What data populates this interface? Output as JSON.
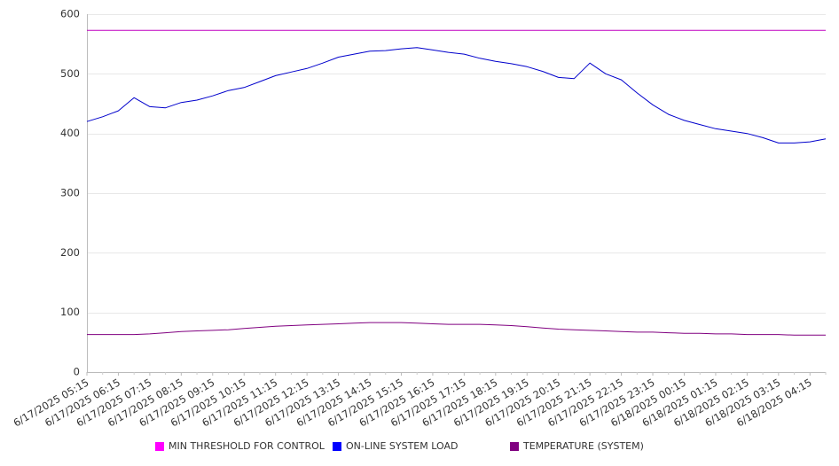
{
  "chart_data": {
    "type": "line",
    "title": "",
    "xlabel": "",
    "ylabel": "",
    "ylim": [
      0,
      600
    ],
    "yticks": [
      0,
      100,
      200,
      300,
      400,
      500,
      600
    ],
    "grid": true,
    "legend_position": "bottom",
    "x_tick_labels": [
      "6/17/2025 05:15",
      "6/17/2025 06:15",
      "6/17/2025 07:15",
      "6/17/2025 08:15",
      "6/17/2025 09:15",
      "6/17/2025 10:15",
      "6/17/2025 11:15",
      "6/17/2025 12:15",
      "6/17/2025 13:15",
      "6/17/2025 14:15",
      "6/17/2025 15:15",
      "6/17/2025 16:15",
      "6/17/2025 17:15",
      "6/17/2025 18:15",
      "6/17/2025 19:15",
      "6/17/2025 20:15",
      "6/17/2025 21:15",
      "6/17/2025 22:15",
      "6/17/2025 23:15",
      "6/18/2025 00:15",
      "6/18/2025 01:15",
      "6/18/2025 02:15",
      "6/18/2025 03:15",
      "6/18/2025 04:15"
    ],
    "x": [
      "6/17/2025 05:15",
      "6/17/2025 05:45",
      "6/17/2025 06:15",
      "6/17/2025 06:45",
      "6/17/2025 07:15",
      "6/17/2025 07:45",
      "6/17/2025 08:15",
      "6/17/2025 08:45",
      "6/17/2025 09:15",
      "6/17/2025 09:45",
      "6/17/2025 10:15",
      "6/17/2025 10:45",
      "6/17/2025 11:15",
      "6/17/2025 11:45",
      "6/17/2025 12:15",
      "6/17/2025 12:45",
      "6/17/2025 13:15",
      "6/17/2025 13:45",
      "6/17/2025 14:15",
      "6/17/2025 14:45",
      "6/17/2025 15:15",
      "6/17/2025 15:45",
      "6/17/2025 16:15",
      "6/17/2025 16:45",
      "6/17/2025 17:15",
      "6/17/2025 17:45",
      "6/17/2025 18:15",
      "6/17/2025 18:45",
      "6/17/2025 19:15",
      "6/17/2025 19:45",
      "6/17/2025 20:15",
      "6/17/2025 20:45",
      "6/17/2025 21:15",
      "6/17/2025 21:45",
      "6/17/2025 22:15",
      "6/17/2025 22:45",
      "6/17/2025 23:15",
      "6/17/2025 23:45",
      "6/18/2025 00:15",
      "6/18/2025 00:45",
      "6/18/2025 01:15",
      "6/18/2025 01:45",
      "6/18/2025 02:15",
      "6/18/2025 02:45",
      "6/18/2025 03:15",
      "6/18/2025 03:45",
      "6/18/2025 04:15",
      "6/18/2025 04:45"
    ],
    "series": [
      {
        "name": "MIN THRESHOLD FOR CONTROL",
        "color": "#c000c0",
        "values": [
          573,
          573,
          573,
          573,
          573,
          573,
          573,
          573,
          573,
          573,
          573,
          573,
          573,
          573,
          573,
          573,
          573,
          573,
          573,
          573,
          573,
          573,
          573,
          573,
          573,
          573,
          573,
          573,
          573,
          573,
          573,
          573,
          573,
          573,
          573,
          573,
          573,
          573,
          573,
          573,
          573,
          573,
          573,
          573,
          573,
          573,
          573,
          573
        ]
      },
      {
        "name": "ON-LINE SYSTEM LOAD",
        "color": "#0000cc",
        "values": [
          420,
          428,
          438,
          460,
          445,
          443,
          452,
          456,
          463,
          472,
          477,
          487,
          497,
          503,
          509,
          518,
          528,
          533,
          538,
          539,
          542,
          544,
          540,
          536,
          533,
          526,
          521,
          517,
          512,
          504,
          494,
          492,
          518,
          500,
          490,
          468,
          448,
          432,
          422,
          415,
          408,
          404,
          400,
          393,
          384,
          384,
          386,
          391
        ]
      },
      {
        "name": "TEMPERATURE (SYSTEM)",
        "color": "#800080",
        "values": [
          63,
          63,
          63,
          63,
          64,
          66,
          68,
          69,
          70,
          71,
          73,
          75,
          77,
          78,
          79,
          80,
          81,
          82,
          83,
          83,
          83,
          82,
          81,
          80,
          80,
          80,
          79,
          78,
          76,
          74,
          72,
          71,
          70,
          69,
          68,
          67,
          67,
          66,
          65,
          65,
          64,
          64,
          63,
          63,
          63,
          62,
          62,
          62
        ]
      }
    ]
  }
}
